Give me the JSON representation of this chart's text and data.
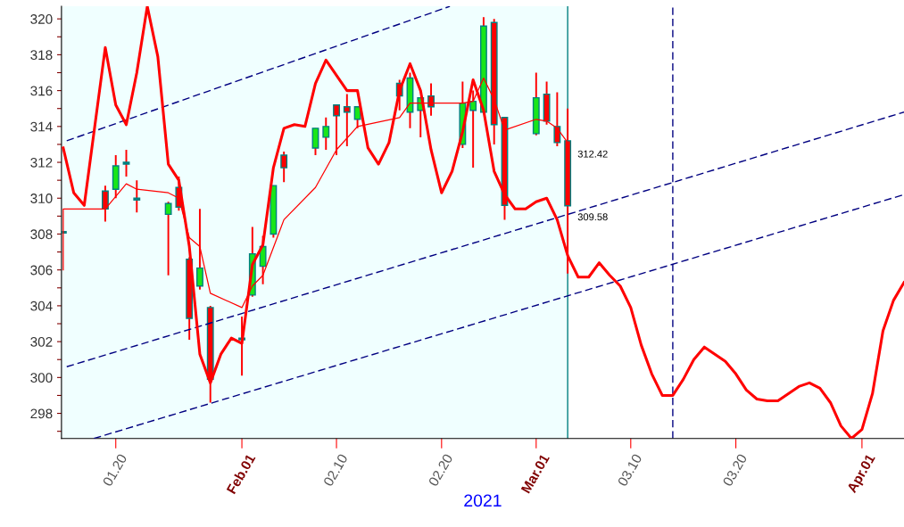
{
  "chart_data": {
    "type": "candlestick",
    "x": [
      "2021-01-15",
      "2021-01-19",
      "2021-01-20",
      "2021-01-21",
      "2021-01-22",
      "2021-01-25",
      "2021-01-26",
      "2021-01-27",
      "2021-01-28",
      "2021-01-29",
      "2021-02-01",
      "2021-02-02",
      "2021-02-03",
      "2021-02-04",
      "2021-02-05",
      "2021-02-08",
      "2021-02-09",
      "2021-02-10",
      "2021-02-11",
      "2021-02-12",
      "2021-02-16",
      "2021-02-17",
      "2021-02-18",
      "2021-02-19",
      "2021-02-22",
      "2021-02-23",
      "2021-02-24",
      "2021-02-25",
      "2021-02-26",
      "2021-03-01",
      "2021-03-02",
      "2021-03-03",
      "2021-03-04"
    ],
    "ohlc": [
      [
        308.1,
        308.1,
        308.1,
        308.1
      ],
      [
        310.4,
        310.7,
        308.7,
        309.4
      ],
      [
        310.5,
        312.4,
        310.0,
        311.8
      ],
      [
        311.9,
        312.7,
        311.2,
        312.0
      ],
      [
        309.9,
        311.0,
        309.2,
        310.0
      ],
      [
        309.1,
        309.8,
        305.7,
        309.7
      ],
      [
        310.6,
        311.2,
        309.3,
        309.5
      ],
      [
        306.6,
        306.7,
        302.1,
        303.3
      ],
      [
        305.1,
        309.4,
        304.9,
        306.1
      ],
      [
        303.9,
        304.0,
        298.6,
        299.9
      ],
      [
        302.1,
        303.4,
        300.1,
        302.2
      ],
      [
        304.6,
        308.4,
        304.5,
        306.9
      ],
      [
        306.2,
        307.9,
        305.2,
        307.3
      ],
      [
        308.0,
        310.7,
        307.8,
        310.7
      ],
      [
        312.4,
        312.6,
        310.9,
        311.7
      ],
      [
        312.8,
        313.9,
        312.4,
        313.9
      ],
      [
        313.4,
        314.5,
        312.7,
        314.0
      ],
      [
        315.2,
        315.2,
        312.4,
        314.6
      ],
      [
        315.1,
        315.8,
        312.9,
        314.8
      ],
      [
        314.4,
        315.1,
        313.9,
        315.1
      ],
      [
        316.4,
        316.6,
        314.9,
        315.7
      ],
      [
        314.8,
        317.0,
        313.9,
        316.7
      ],
      [
        314.9,
        315.6,
        313.4,
        315.6
      ],
      [
        315.7,
        316.4,
        314.6,
        315.1
      ],
      [
        313.0,
        316.5,
        312.8,
        315.3
      ],
      [
        314.9,
        316.0,
        311.7,
        315.4
      ],
      [
        314.8,
        320.1,
        314.8,
        319.6
      ],
      [
        319.8,
        320.0,
        313.0,
        314.1
      ],
      [
        314.5,
        314.5,
        308.8,
        309.6
      ],
      [
        313.6,
        317.0,
        313.5,
        315.6
      ],
      [
        315.8,
        316.5,
        314.1,
        314.3
      ],
      [
        314.0,
        315.9,
        312.9,
        313.1
      ],
      [
        313.2,
        315.0,
        305.8,
        309.58
      ]
    ],
    "colors": [
      "#008080",
      "#ff0000",
      "#19e619",
      "#008080",
      "#008080",
      "#19e619",
      "#ff0000",
      "#ff0000",
      "#19e619",
      "#ff0000",
      "#008080",
      "#19e619",
      "#19e619",
      "#19e619",
      "#ff0000",
      "#19e619",
      "#19e619",
      "#ff0000",
      "#ff0000",
      "#19e619",
      "#ff0000",
      "#19e619",
      "#19e619",
      "#ff0000",
      "#19e619",
      "#19e619",
      "#19e619",
      "#ff0000",
      "#ff0000",
      "#19e619",
      "#ff0000",
      "#ff0000",
      "#ff0000"
    ],
    "series": [
      {
        "type": "line",
        "color": "#000080",
        "line_style": "dashed",
        "x": [
          "2021-01-15T08:00",
          "2021-02-20T19:00"
        ],
        "values": [
          313.2,
          320.7
        ]
      },
      {
        "type": "line",
        "color": "#000080",
        "line_style": "dashed",
        "x": [
          "2021-01-15T08:00",
          "2021-04-05"
        ],
        "values": [
          300.6,
          314.8
        ]
      },
      {
        "type": "line",
        "color": "#000080",
        "line_style": "dashed",
        "x": [
          "2021-01-17T22:00",
          "2021-04-05"
        ],
        "values": [
          296.6,
          310.2
        ]
      },
      {
        "type": "line",
        "color": "#ff0000",
        "line_style": "solid",
        "x": [
          "2021-01-15",
          "2021-01-15",
          "2021-01-19",
          "2021-01-21",
          "2021-01-22",
          "2021-01-25",
          "2021-01-26",
          "2021-01-27",
          "2021-01-28",
          "2021-01-29",
          "2021-02-01",
          "2021-02-02",
          "2021-02-03",
          "2021-02-05",
          "2021-02-08",
          "2021-02-10",
          "2021-02-12",
          "2021-02-16",
          "2021-02-17",
          "2021-02-22",
          "2021-02-23",
          "2021-02-24",
          "2021-02-25",
          "2021-02-26",
          "2021-03-01",
          "2021-03-02",
          "2021-03-03",
          "2021-03-04"
        ],
        "values": [
          306.0,
          309.4,
          309.4,
          310.8,
          310.5,
          310.3,
          310.0,
          307.8,
          307.3,
          304.7,
          303.9,
          305.1,
          305.7,
          308.8,
          310.6,
          312.7,
          314.0,
          314.5,
          315.3,
          315.3,
          315.4,
          316.7,
          315.5,
          313.8,
          314.4,
          314.3,
          313.9,
          313.1
        ]
      },
      {
        "type": "line",
        "color": "#ff0000",
        "line_style": "solid",
        "x": [
          "2021-01-15",
          "2021-01-16",
          "2021-01-17",
          "2021-01-19",
          "2021-01-20",
          "2021-01-21",
          "2021-01-22",
          "2021-01-23",
          "2021-01-24",
          "2021-01-25",
          "2021-01-26",
          "2021-01-27",
          "2021-01-28",
          "2021-01-29",
          "2021-01-30",
          "2021-01-31",
          "2021-02-01",
          "2021-02-02",
          "2021-02-03",
          "2021-02-04",
          "2021-02-05",
          "2021-02-06",
          "2021-02-07",
          "2021-02-08",
          "2021-02-09",
          "2021-02-11",
          "2021-02-12",
          "2021-02-13",
          "2021-02-14",
          "2021-02-15",
          "2021-02-16",
          "2021-02-17",
          "2021-02-18",
          "2021-02-19",
          "2021-02-20",
          "2021-02-21",
          "2021-02-22",
          "2021-02-23",
          "2021-02-24",
          "2021-02-25",
          "2021-02-26",
          "2021-02-27",
          "2021-02-28",
          "2021-03-01",
          "2021-03-02",
          "2021-03-03",
          "2021-03-04",
          "2021-03-05",
          "2021-03-06",
          "2021-03-07",
          "2021-03-08",
          "2021-03-09",
          "2021-03-10",
          "2021-03-11",
          "2021-03-12",
          "2021-03-13",
          "2021-03-14",
          "2021-03-15",
          "2021-03-16",
          "2021-03-17",
          "2021-03-19",
          "2021-03-20",
          "2021-03-21",
          "2021-03-22",
          "2021-03-23",
          "2021-03-24",
          "2021-03-25",
          "2021-03-26",
          "2021-03-27",
          "2021-03-28",
          "2021-03-29",
          "2021-03-30",
          "2021-03-31",
          "2021-04-01",
          "2021-04-02",
          "2021-04-03",
          "2021-04-04",
          "2021-04-05"
        ],
        "values": [
          312.8,
          310.3,
          309.6,
          318.4,
          315.2,
          314.1,
          317.0,
          320.7,
          317.9,
          311.9,
          311.0,
          307.3,
          301.3,
          299.7,
          301.3,
          302.2,
          301.9,
          306.3,
          307.4,
          311.7,
          313.9,
          314.1,
          314.0,
          316.4,
          317.7,
          316.0,
          316.0,
          312.8,
          311.9,
          313.1,
          316.0,
          317.5,
          316.0,
          312.7,
          310.3,
          311.5,
          313.7,
          316.6,
          314.9,
          311.5,
          310.2,
          309.4,
          309.4,
          309.8,
          310.0,
          308.8,
          306.8,
          305.6,
          305.6,
          306.4,
          305.7,
          305.1,
          303.9,
          301.8,
          300.2,
          299.0,
          299.0,
          299.9,
          301.0,
          301.7,
          300.9,
          300.2,
          299.3,
          298.8,
          298.7,
          298.7,
          299.1,
          299.5,
          299.7,
          299.4,
          298.6,
          297.3,
          296.6,
          297.1,
          299.1,
          302.6,
          304.3,
          305.3
        ]
      }
    ],
    "ref_lines": [
      {
        "axis": "x",
        "value": "2021-03-04",
        "label": null,
        "color": "#008080",
        "line_style": "solid"
      },
      {
        "axis": "x",
        "value": "2021-03-14",
        "label": null,
        "color": "#000080",
        "line_style": "dashed"
      }
    ],
    "bands": [
      {
        "axis": "x",
        "from": "2021-01-14T20:00",
        "to": "2021-03-04",
        "label": null,
        "color": "#f0ffff"
      }
    ],
    "annotations": [
      {
        "text": "312.42",
        "x": "2021-03-04",
        "y": 312.42
      },
      {
        "text": "309.58",
        "x": "2021-03-04",
        "y": 309.58
      }
    ],
    "xlabel": "2021",
    "xlim": [
      "2021-01-14T20:00",
      "2021-04-05"
    ],
    "xticks": [
      {
        "value": "2021-01-20",
        "label": "01.20"
      },
      {
        "value": "2021-02-01",
        "label": "Feb.01"
      },
      {
        "value": "2021-02-10",
        "label": "02.10"
      },
      {
        "value": "2021-02-20",
        "label": "02.20"
      },
      {
        "value": "2021-03-01",
        "label": "Mar.01"
      },
      {
        "value": "2021-03-10",
        "label": "03.10"
      },
      {
        "value": "2021-03-20",
        "label": "03.20"
      },
      {
        "value": "2021-04-01",
        "label": "Apr.01"
      }
    ],
    "ylim": [
      296.6,
      320.7
    ],
    "yticks": [
      {
        "value": 297,
        "label": null
      },
      298,
      {
        "value": 299,
        "label": null
      },
      300,
      {
        "value": 301,
        "label": null
      },
      302,
      {
        "value": 303,
        "label": null
      },
      304,
      {
        "value": 305,
        "label": null
      },
      306,
      {
        "value": 307,
        "label": null
      },
      308,
      {
        "value": 309,
        "label": null
      },
      310,
      {
        "value": 311,
        "label": null
      },
      312,
      {
        "value": 313,
        "label": null
      },
      314,
      {
        "value": 315,
        "label": null
      },
      316,
      {
        "value": 317,
        "label": null
      },
      318,
      {
        "value": 319,
        "label": null
      },
      320
    ],
    "grid": false
  }
}
